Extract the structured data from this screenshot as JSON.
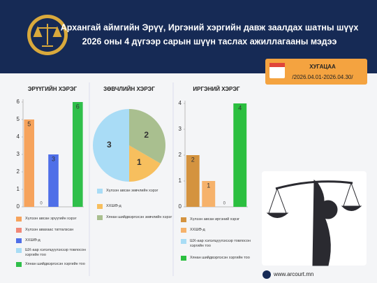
{
  "header": {
    "title_line1": "Архангай аймгийн Эрүү, Иргэний хэргийн давж заалдах шатны шүүх",
    "title_line2": "2026 оны 4 дүгээр сарын шүүн таслах ажиллагааны мэдээ"
  },
  "period": {
    "label": "ХУГАЦАА",
    "range": "/2026.04.01-2026.04.30/"
  },
  "chart_data": [
    {
      "type": "bar",
      "title": "ЭРҮҮГИЙН ХЭРЭГ",
      "categories": [
        "Хүлээн авсан эрүүгийн хэрэг",
        "Хүлээн авахаас татгалзсан",
        "ХХШӨ-д",
        "ШХ-аар хэлэлцүүлэхээр товлосон хэргийн тоо",
        "Хянан шийдвэрлэсэн хэргийн тоо"
      ],
      "values": [
        5,
        0,
        3,
        null,
        6
      ],
      "colors": [
        "#f6a35c",
        "#f08878",
        "#4f6fe8",
        "#a8dcf5",
        "#2fbf4a"
      ],
      "ylim": [
        0,
        6
      ],
      "yticks": [
        0,
        1,
        2,
        3,
        4,
        5,
        6
      ]
    },
    {
      "type": "pie",
      "title": "ЗӨВЧЛИЙН ХЭРЭГ",
      "categories": [
        "Хүлээн авсан зөвчлийн хэрэг",
        "ХХШӨ-д",
        "Хянан шийдвэрлэсэн зөвчлийн хэрэг"
      ],
      "values": [
        3,
        1,
        2
      ],
      "colors": [
        "#a9dcf6",
        "#f7bf5e",
        "#a9bf8f"
      ]
    },
    {
      "type": "bar",
      "title": "ИРГЭНИЙ ХЭРЭГ",
      "categories": [
        "Хүлээн авсан иргэний хэрэг",
        "ХХШӨ-д",
        "ШХ-аар хэлэлцүүлэхээр товлосон хэргийн тоо",
        "Хянан шийдвэрлэсэн хэргийн тоо"
      ],
      "values": [
        2,
        1,
        0,
        4
      ],
      "colors": [
        "#d4933f",
        "#f6b26b",
        "#a8dcf5",
        "#2bbf3f"
      ],
      "ylim": [
        0,
        4
      ],
      "yticks": [
        0,
        1,
        2,
        3,
        4
      ]
    }
  ],
  "footer": {
    "website": "www.arcourt.mn"
  }
}
